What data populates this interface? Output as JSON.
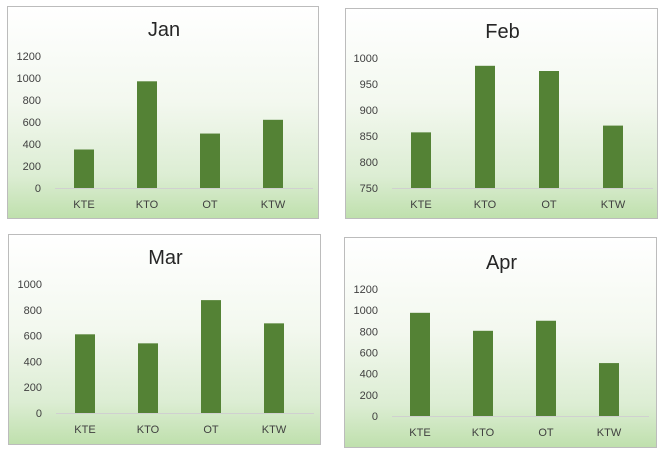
{
  "chart_data": [
    {
      "type": "bar",
      "title": "Jan",
      "categories": [
        "KTE",
        "KTO",
        "OT",
        "KTW"
      ],
      "values": [
        350,
        970,
        495,
        620
      ],
      "ylim": [
        0,
        1200
      ],
      "yticks": [
        0,
        200,
        400,
        600,
        800,
        1000,
        1200
      ],
      "grid": false,
      "bar_color": "#548235"
    },
    {
      "type": "bar",
      "title": "Feb",
      "categories": [
        "KTE",
        "KTO",
        "OT",
        "KTW"
      ],
      "values": [
        857,
        985,
        975,
        870
      ],
      "ylim": [
        750,
        1000
      ],
      "yticks": [
        750,
        800,
        850,
        900,
        950,
        1000
      ],
      "grid": false,
      "bar_color": "#548235"
    },
    {
      "type": "bar",
      "title": "Mar",
      "categories": [
        "KTE",
        "KTO",
        "OT",
        "KTW"
      ],
      "values": [
        610,
        540,
        875,
        695
      ],
      "ylim": [
        0,
        1000
      ],
      "yticks": [
        0,
        200,
        400,
        600,
        800,
        1000
      ],
      "grid": false,
      "bar_color": "#548235"
    },
    {
      "type": "bar",
      "title": "Apr",
      "categories": [
        "KTE",
        "KTO",
        "OT",
        "KTW"
      ],
      "values": [
        975,
        805,
        900,
        500
      ],
      "ylim": [
        0,
        1200
      ],
      "yticks": [
        0,
        200,
        400,
        600,
        800,
        1000,
        1200
      ],
      "grid": false,
      "bar_color": "#548235"
    }
  ]
}
